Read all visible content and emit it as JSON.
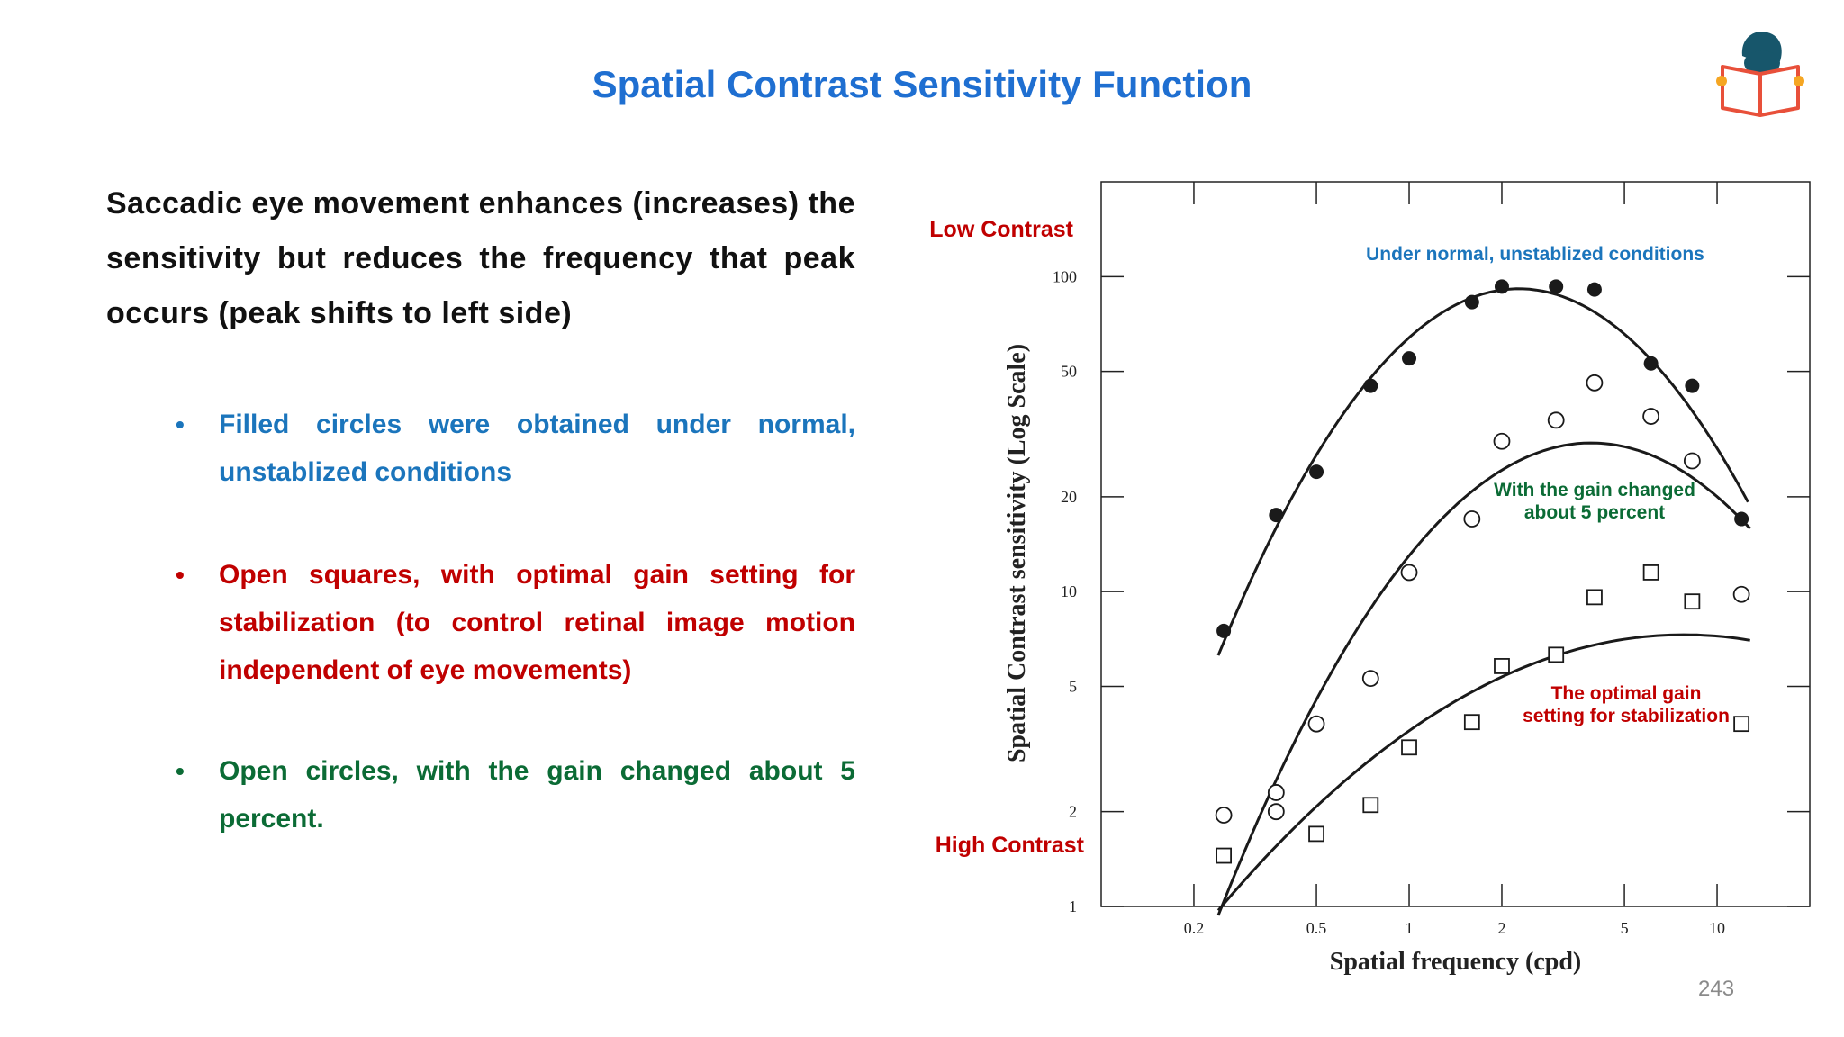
{
  "slide": {
    "title": "Spatial Contrast Sensitivity Function",
    "page_number": "243",
    "lead": "Saccadic eye movement enhances (increases) the sensitivity but reduces the frequency that peak occurs (peak shifts to left side)",
    "bullet_marker": "•",
    "bullets": [
      {
        "text": "Filled circles were obtained  under normal, unstablized conditions",
        "color": "#1b75bc"
      },
      {
        "text": "Open squares, with optimal gain setting  for stabilization (to control retinal image motion independent of eye movements)",
        "color": "#c00000"
      },
      {
        "text": "Open circles, with the  gain changed about 5 percent.",
        "color": "#0b6b35"
      }
    ],
    "logo_icon": "reading-person-icon"
  },
  "chart_data": {
    "type": "scatter",
    "xlabel": "Spatial frequency (cpd)",
    "ylabel": "Spatial Contrast sensitivity (Log Scale)",
    "x_scale": "log",
    "y_scale": "log",
    "xlim": [
      0.1,
      20
    ],
    "ylim": [
      1,
      200
    ],
    "x_ticks": [
      0.2,
      0.5,
      1,
      2,
      5,
      10
    ],
    "x_tick_labels": [
      "0.2",
      "0.5",
      "1",
      "2",
      "5",
      "10"
    ],
    "y_ticks": [
      1,
      2,
      5,
      10,
      20,
      50,
      100
    ],
    "y_tick_labels": [
      "1",
      "2",
      "5",
      "10",
      "20",
      "50",
      "100"
    ],
    "grid": false,
    "annotations": [
      {
        "text": "Low Contrast",
        "color": "#c00000"
      },
      {
        "text": "High Contrast",
        "color": "#c00000"
      }
    ],
    "series": [
      {
        "marker": "filled-circle",
        "label_lines": [
          "Under normal, unstablized conditions"
        ],
        "label_color": "#1b75bc",
        "x": [
          0.25,
          0.37,
          0.5,
          0.75,
          1.0,
          1.6,
          2.0,
          3.0,
          4.0,
          6.1,
          8.3,
          12.0
        ],
        "y": [
          7.5,
          17.5,
          24,
          45,
          55,
          83,
          93,
          93,
          91,
          53,
          45,
          17
        ]
      },
      {
        "marker": "open-circle",
        "label_lines": [
          "With the  gain changed",
          "about 5 percent"
        ],
        "label_color": "#0b6b35",
        "x": [
          0.25,
          0.37,
          0.37,
          0.5,
          0.75,
          1.0,
          1.6,
          2.0,
          3.0,
          4.0,
          6.1,
          8.3,
          12.0
        ],
        "y": [
          1.95,
          2.3,
          2.0,
          3.8,
          5.3,
          11.5,
          17,
          30,
          35,
          46,
          36,
          26,
          9.8
        ]
      },
      {
        "marker": "open-square",
        "label_lines": [
          "The optimal gain",
          "setting  for stabilization"
        ],
        "label_color": "#c00000",
        "x": [
          0.25,
          0.5,
          0.75,
          1.0,
          1.6,
          2.0,
          3.0,
          4.0,
          6.1,
          8.3,
          12.0
        ],
        "y": [
          1.45,
          1.7,
          2.1,
          3.2,
          3.85,
          5.8,
          6.3,
          9.6,
          11.5,
          9.3,
          3.8
        ]
      }
    ]
  }
}
